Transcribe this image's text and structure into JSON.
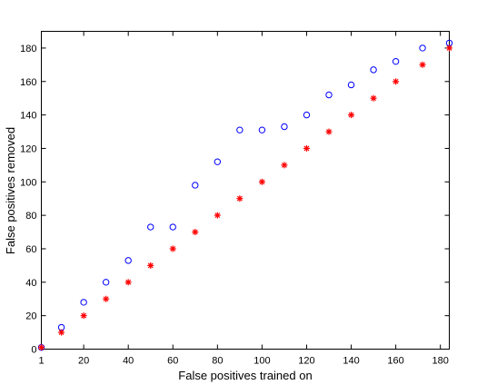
{
  "chart_data": {
    "type": "scatter",
    "title": "",
    "xlabel": "False positives trained on",
    "ylabel": "False positives removed",
    "xlim": [
      1,
      184
    ],
    "ylim": [
      0,
      190
    ],
    "x_ticks": [
      1,
      20,
      40,
      60,
      80,
      100,
      120,
      140,
      160,
      180
    ],
    "y_ticks": [
      0,
      20,
      40,
      60,
      80,
      100,
      120,
      140,
      160,
      180
    ],
    "grid": false,
    "legend": "none",
    "series": [
      {
        "marker": "circle",
        "color": "#0000ff",
        "points": [
          [
            1,
            1
          ],
          [
            10,
            13
          ],
          [
            20,
            28
          ],
          [
            30,
            40
          ],
          [
            40,
            53
          ],
          [
            50,
            73
          ],
          [
            60,
            73
          ],
          [
            70,
            98
          ],
          [
            80,
            112
          ],
          [
            90,
            131
          ],
          [
            100,
            131
          ],
          [
            110,
            133
          ],
          [
            120,
            140
          ],
          [
            130,
            152
          ],
          [
            140,
            158
          ],
          [
            150,
            167
          ],
          [
            160,
            172
          ],
          [
            172,
            180
          ],
          [
            184,
            183
          ]
        ]
      },
      {
        "marker": "asterisk",
        "color": "#ff0000",
        "points": [
          [
            1,
            1
          ],
          [
            10,
            10
          ],
          [
            20,
            20
          ],
          [
            30,
            30
          ],
          [
            40,
            40
          ],
          [
            50,
            50
          ],
          [
            60,
            60
          ],
          [
            70,
            70
          ],
          [
            80,
            80
          ],
          [
            90,
            90
          ],
          [
            100,
            100
          ],
          [
            110,
            110
          ],
          [
            120,
            120
          ],
          [
            130,
            130
          ],
          [
            140,
            140
          ],
          [
            150,
            150
          ],
          [
            160,
            160
          ],
          [
            172,
            170
          ],
          [
            184,
            180
          ]
        ]
      }
    ]
  }
}
